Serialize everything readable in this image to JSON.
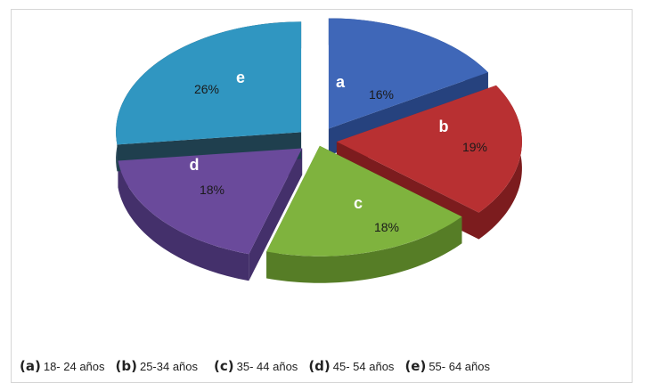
{
  "chart_data": {
    "type": "pie",
    "style": "3d-exploded",
    "slices": [
      {
        "key": "a",
        "label": "a",
        "value": 16,
        "value_label": "16%",
        "legend_key": "(a)",
        "legend_text": "18- 24 años",
        "color": "#3f67b8",
        "side_color": "#26427e"
      },
      {
        "key": "b",
        "label": "b",
        "value": 19,
        "value_label": "19%",
        "legend_key": "(b)",
        "legend_text": "25-34 años",
        "color": "#b83032",
        "side_color": "#7c1c1e"
      },
      {
        "key": "c",
        "label": "c",
        "value": 18,
        "value_label": "18%",
        "legend_key": "(c)",
        "legend_text": "35- 44 años",
        "color": "#7fb33e",
        "side_color": "#567d26"
      },
      {
        "key": "d",
        "label": "d",
        "value": 18,
        "value_label": "18%",
        "legend_key": "(d)",
        "legend_text": "45- 54 años",
        "color": "#6a4a9b",
        "side_color": "#44306b"
      },
      {
        "key": "e",
        "label": "e",
        "value": 26,
        "value_label": "26%",
        "legend_key": "(e)",
        "legend_text": "55- 64 años",
        "color": "#3096c1",
        "side_color": "#1f3f4e"
      }
    ],
    "legend_position": "bottom"
  }
}
